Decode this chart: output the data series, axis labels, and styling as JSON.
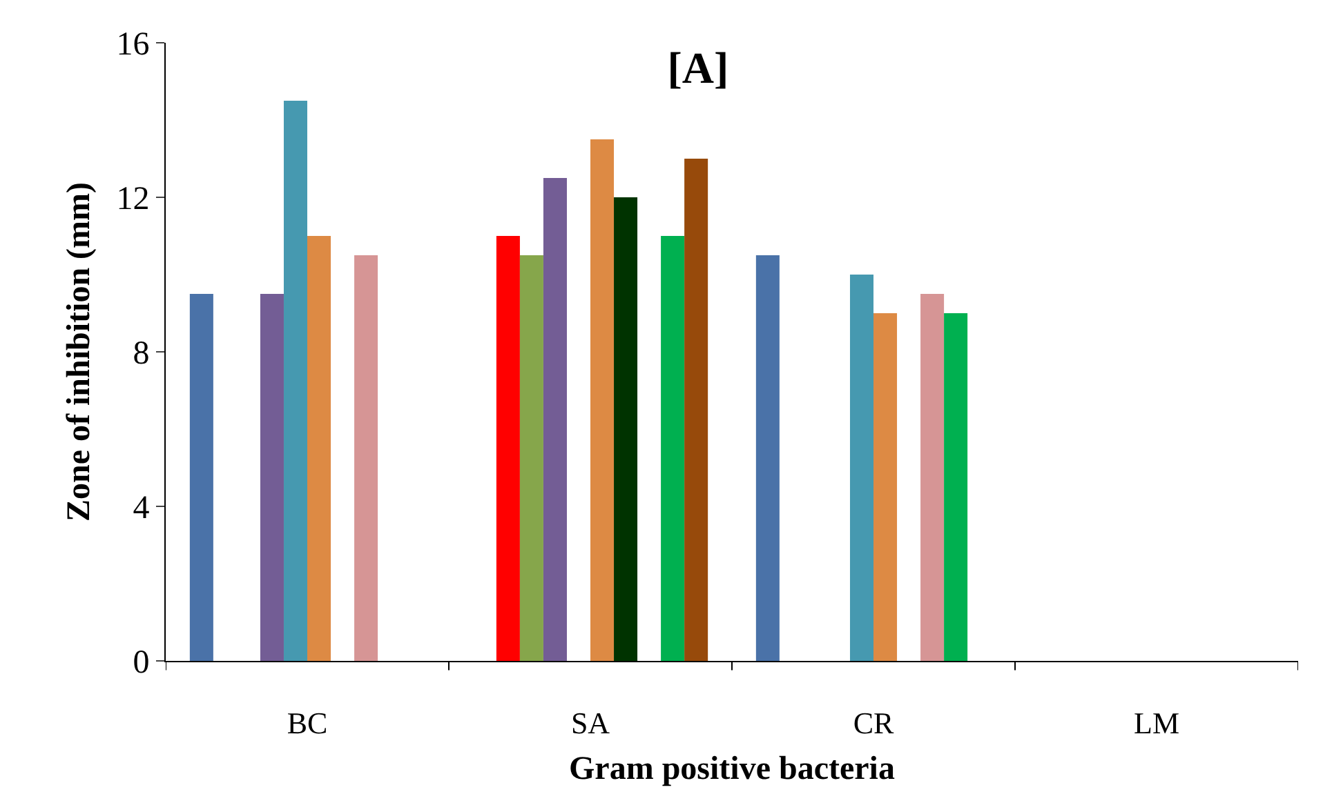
{
  "chart_data": {
    "type": "bar",
    "title": "[A]",
    "xlabel": "Gram positive bacteria",
    "ylabel": "Zone of inhibition (mm)",
    "categories": [
      "BC",
      "SA",
      "CR",
      "LM"
    ],
    "series": [
      {
        "color": "#4a72a8",
        "values": [
          9.5,
          null,
          10.5,
          null
        ]
      },
      {
        "color": "#ff0000",
        "values": [
          null,
          11,
          null,
          null
        ]
      },
      {
        "color": "#86a64b",
        "values": [
          null,
          10.5,
          null,
          null
        ]
      },
      {
        "color": "#735d95",
        "values": [
          9.5,
          12.5,
          null,
          null
        ]
      },
      {
        "color": "#4699b0",
        "values": [
          14.5,
          null,
          10,
          null
        ]
      },
      {
        "color": "#dd8a44",
        "values": [
          11,
          13.5,
          9,
          null
        ]
      },
      {
        "color": "#003300",
        "values": [
          null,
          12,
          null,
          null
        ]
      },
      {
        "color": "#d69595",
        "values": [
          10.5,
          null,
          9.5,
          null
        ]
      },
      {
        "color": "#00b050",
        "values": [
          null,
          11,
          9,
          null
        ]
      },
      {
        "color": "#974a0b",
        "values": [
          null,
          13,
          null,
          null
        ]
      }
    ],
    "ylim": [
      0,
      16
    ],
    "yticks": [
      0,
      4,
      8,
      12,
      16
    ],
    "legend": false
  }
}
